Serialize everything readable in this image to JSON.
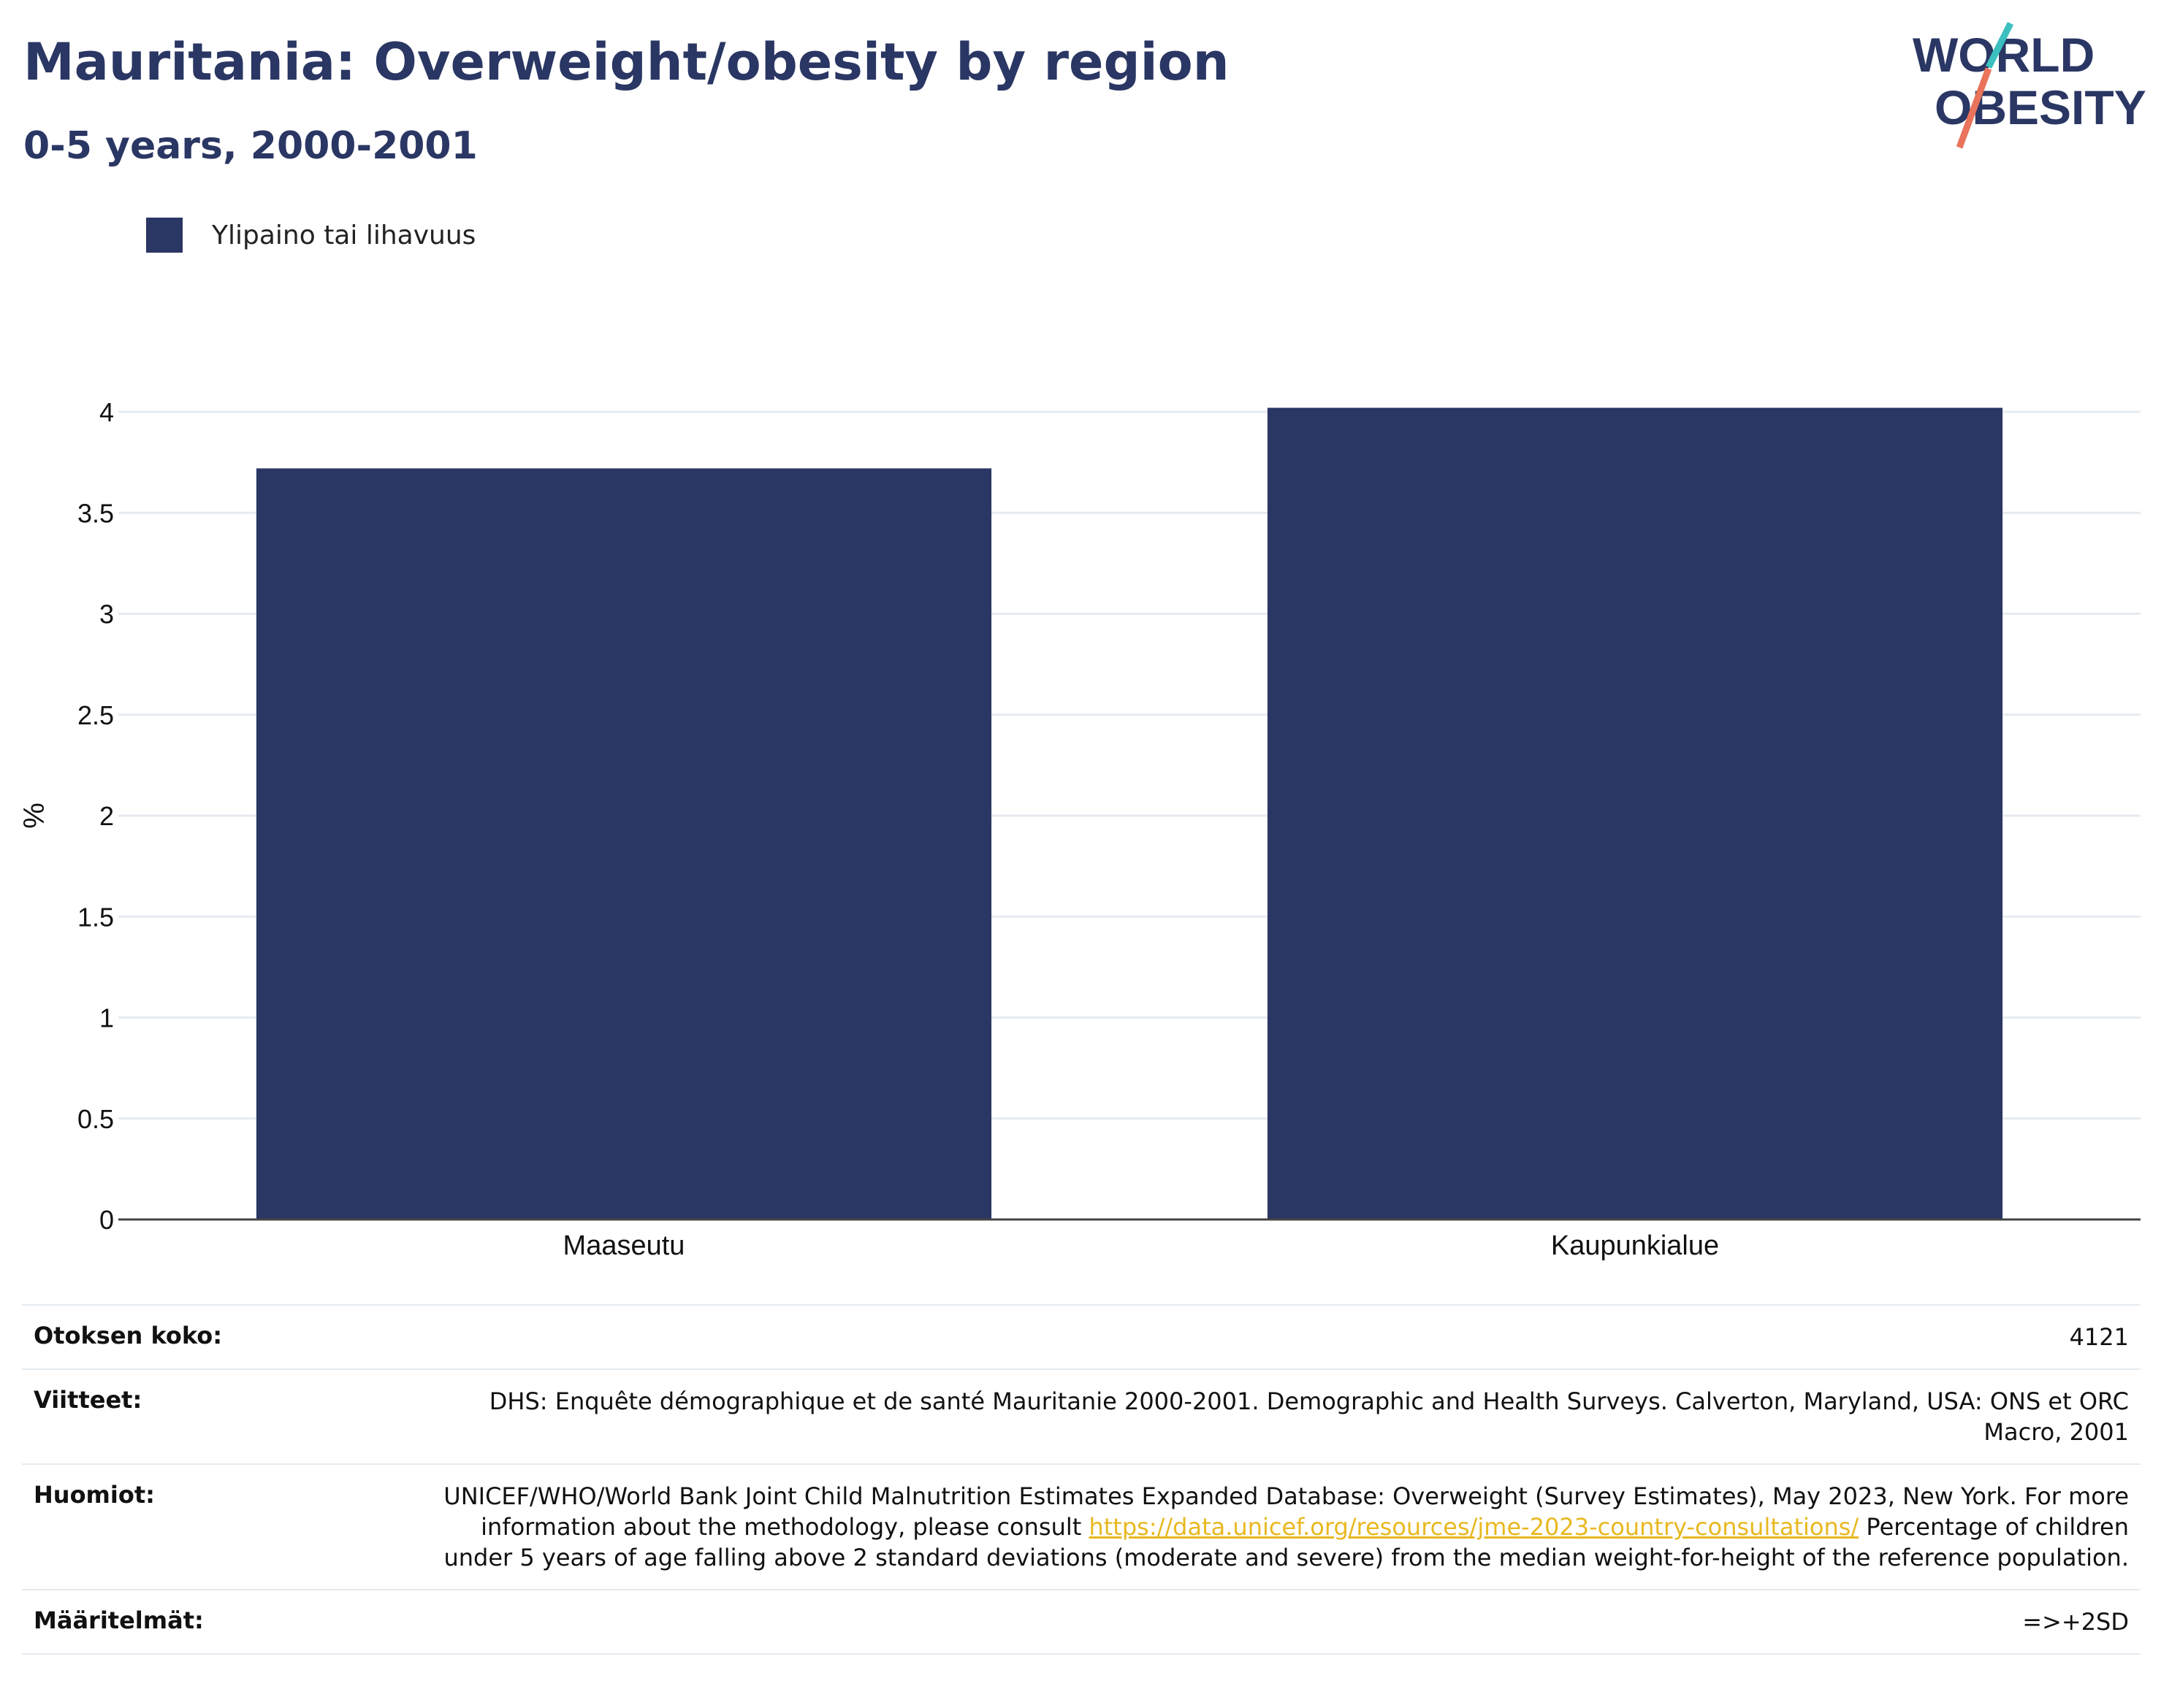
{
  "header": {
    "title": "Mauritania: Overweight/obesity by region",
    "subtitle": "0-5 years, 2000-2001"
  },
  "logo": {
    "line1": "WORLD",
    "line2": "OBESITY"
  },
  "legend": {
    "label": "Ylipaino tai lihavuus"
  },
  "colors": {
    "bar": "#2a3663",
    "accent_teal": "#3bbfbf",
    "accent_coral": "#e9735b",
    "link": "#e8b820"
  },
  "chart_data": {
    "type": "bar",
    "categories": [
      "Maaseutu",
      "Kaupunkialue"
    ],
    "series": [
      {
        "name": "Ylipaino tai lihavuus",
        "values": [
          3.72,
          4.02
        ]
      }
    ],
    "ylabel": "%",
    "ylim": [
      0,
      4
    ],
    "yticks": [
      0,
      0.5,
      1,
      1.5,
      2,
      2.5,
      3,
      3.5,
      4
    ],
    "ytick_labels": [
      "0",
      "0.5",
      "1",
      "1.5",
      "2",
      "2.5",
      "3",
      "3.5",
      "4"
    ],
    "grid": true
  },
  "meta": {
    "sample_label": "Otoksen koko:",
    "sample_value": "4121",
    "refs_label": "Viitteet:",
    "refs_value": "DHS: Enquête démographique et de santé Mauritanie 2000-2001. Demographic and Health Surveys. Calverton, Maryland, USA: ONS et ORC Macro, 2001",
    "notes_label": "Huomiot:",
    "notes_text1": "UNICEF/WHO/World Bank Joint Child Malnutrition Estimates Expanded Database: Overweight (Survey Estimates), May 2023, New York. For more information about the methodology, please consult ",
    "notes_link": "https://data.unicef.org/resources/jme-2023-country-consultations/",
    "notes_text2": " Percentage of children under 5 years of age falling above 2 standard deviations (moderate and severe) from the median weight-for-height of the reference population.",
    "defs_label": "Määritelmät:",
    "defs_value": "=>+2SD"
  }
}
